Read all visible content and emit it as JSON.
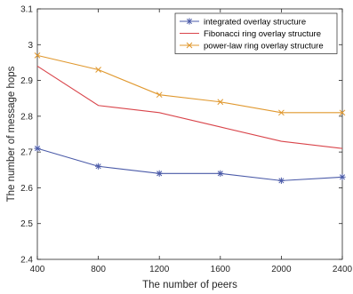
{
  "chart_data": {
    "type": "line",
    "xlabel": "The number of peers",
    "ylabel": "The number of message hops",
    "x": [
      400,
      800,
      1200,
      1600,
      2000,
      2400
    ],
    "xlim": [
      400,
      2400
    ],
    "ylim": [
      2.4,
      3.1
    ],
    "xticks": [
      "400",
      "800",
      "1200",
      "1600",
      "2000",
      "2400"
    ],
    "yticks": [
      "2.4",
      "2.5",
      "2.6",
      "2.7",
      "2.8",
      "2.9",
      "3",
      "3.1"
    ],
    "grid": false,
    "legend_position": "top-right",
    "series": [
      {
        "name": "integrated overlay structure",
        "color": "#4a5aa8",
        "marker": "asterisk",
        "values": [
          2.71,
          2.66,
          2.64,
          2.64,
          2.62,
          2.63
        ]
      },
      {
        "name": "Fibonacci ring overlay structure",
        "color": "#d9444a",
        "marker": "none",
        "values": [
          2.94,
          2.83,
          2.81,
          2.77,
          2.73,
          2.71
        ]
      },
      {
        "name": "power-law ring overlay structure",
        "color": "#e0982e",
        "marker": "x",
        "values": [
          2.97,
          2.93,
          2.86,
          2.84,
          2.81,
          2.81
        ]
      }
    ]
  }
}
